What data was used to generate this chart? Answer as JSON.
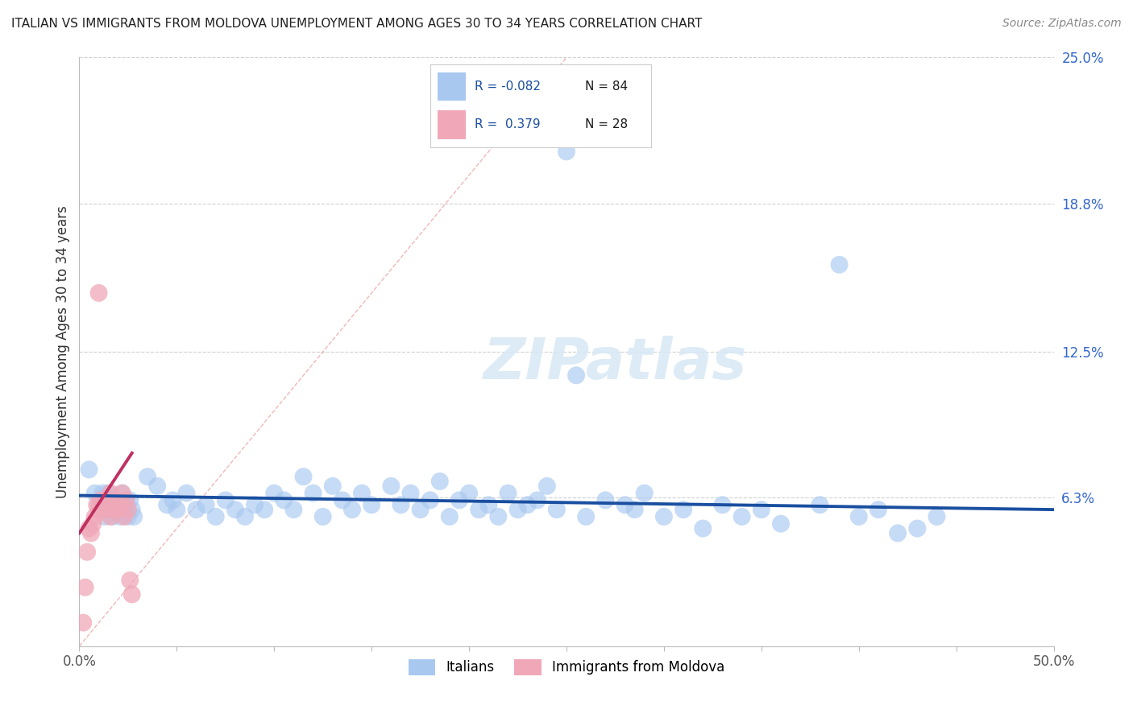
{
  "title": "ITALIAN VS IMMIGRANTS FROM MOLDOVA UNEMPLOYMENT AMONG AGES 30 TO 34 YEARS CORRELATION CHART",
  "source": "Source: ZipAtlas.com",
  "ylabel": "Unemployment Among Ages 30 to 34 years",
  "xlim": [
    0,
    0.5
  ],
  "ylim": [
    0,
    0.25
  ],
  "ytick_right_labels": [
    "6.3%",
    "12.5%",
    "18.8%",
    "25.0%"
  ],
  "ytick_right_values": [
    0.063,
    0.125,
    0.188,
    0.25
  ],
  "legend_blue_r": "-0.082",
  "legend_blue_n": "84",
  "legend_pink_r": "0.379",
  "legend_pink_n": "28",
  "legend_label_blue": "Italians",
  "legend_label_pink": "Immigrants from Moldova",
  "blue_color": "#a8c8f0",
  "blue_line_color": "#1a4fa0",
  "pink_color": "#f0a8b8",
  "pink_line_color": "#c03060",
  "background_color": "#ffffff",
  "grid_color": "#cccccc",
  "blue_scatter_x": [
    0.005,
    0.008,
    0.01,
    0.012,
    0.013,
    0.015,
    0.015,
    0.016,
    0.017,
    0.018,
    0.019,
    0.02,
    0.021,
    0.022,
    0.023,
    0.024,
    0.025,
    0.026,
    0.027,
    0.028,
    0.035,
    0.04,
    0.045,
    0.048,
    0.05,
    0.055,
    0.06,
    0.065,
    0.07,
    0.075,
    0.08,
    0.085,
    0.09,
    0.095,
    0.1,
    0.105,
    0.11,
    0.115,
    0.12,
    0.125,
    0.13,
    0.135,
    0.14,
    0.145,
    0.15,
    0.16,
    0.165,
    0.17,
    0.175,
    0.18,
    0.185,
    0.19,
    0.195,
    0.2,
    0.205,
    0.21,
    0.215,
    0.22,
    0.225,
    0.23,
    0.235,
    0.24,
    0.245,
    0.25,
    0.255,
    0.26,
    0.27,
    0.28,
    0.285,
    0.29,
    0.3,
    0.31,
    0.32,
    0.33,
    0.34,
    0.35,
    0.36,
    0.38,
    0.39,
    0.4,
    0.41,
    0.42,
    0.43,
    0.44
  ],
  "blue_scatter_y": [
    0.075,
    0.065,
    0.06,
    0.065,
    0.055,
    0.06,
    0.065,
    0.058,
    0.055,
    0.062,
    0.058,
    0.06,
    0.055,
    0.065,
    0.058,
    0.06,
    0.055,
    0.062,
    0.058,
    0.055,
    0.072,
    0.068,
    0.06,
    0.062,
    0.058,
    0.065,
    0.058,
    0.06,
    0.055,
    0.062,
    0.058,
    0.055,
    0.06,
    0.058,
    0.065,
    0.062,
    0.058,
    0.072,
    0.065,
    0.055,
    0.068,
    0.062,
    0.058,
    0.065,
    0.06,
    0.068,
    0.06,
    0.065,
    0.058,
    0.062,
    0.07,
    0.055,
    0.062,
    0.065,
    0.058,
    0.06,
    0.055,
    0.065,
    0.058,
    0.06,
    0.062,
    0.068,
    0.058,
    0.21,
    0.115,
    0.055,
    0.062,
    0.06,
    0.058,
    0.065,
    0.055,
    0.058,
    0.05,
    0.06,
    0.055,
    0.058,
    0.052,
    0.06,
    0.162,
    0.055,
    0.058,
    0.048,
    0.05,
    0.055
  ],
  "pink_scatter_x": [
    0.002,
    0.003,
    0.004,
    0.005,
    0.006,
    0.007,
    0.008,
    0.009,
    0.01,
    0.01,
    0.011,
    0.012,
    0.013,
    0.014,
    0.015,
    0.016,
    0.016,
    0.017,
    0.018,
    0.019,
    0.02,
    0.021,
    0.022,
    0.023,
    0.024,
    0.025,
    0.026,
    0.027
  ],
  "pink_scatter_y": [
    0.01,
    0.025,
    0.04,
    0.05,
    0.048,
    0.052,
    0.055,
    0.06,
    0.058,
    0.15,
    0.062,
    0.06,
    0.058,
    0.062,
    0.06,
    0.065,
    0.055,
    0.058,
    0.06,
    0.062,
    0.058,
    0.06,
    0.065,
    0.055,
    0.062,
    0.058,
    0.028,
    0.022
  ],
  "blue_trend_x": [
    0.0,
    0.5
  ],
  "blue_trend_y": [
    0.064,
    0.058
  ],
  "pink_trend_x": [
    0.0,
    0.027
  ],
  "pink_trend_y": [
    0.048,
    0.082
  ],
  "diag_line_x": [
    0.0,
    0.25
  ],
  "diag_line_y": [
    0.0,
    0.25
  ]
}
